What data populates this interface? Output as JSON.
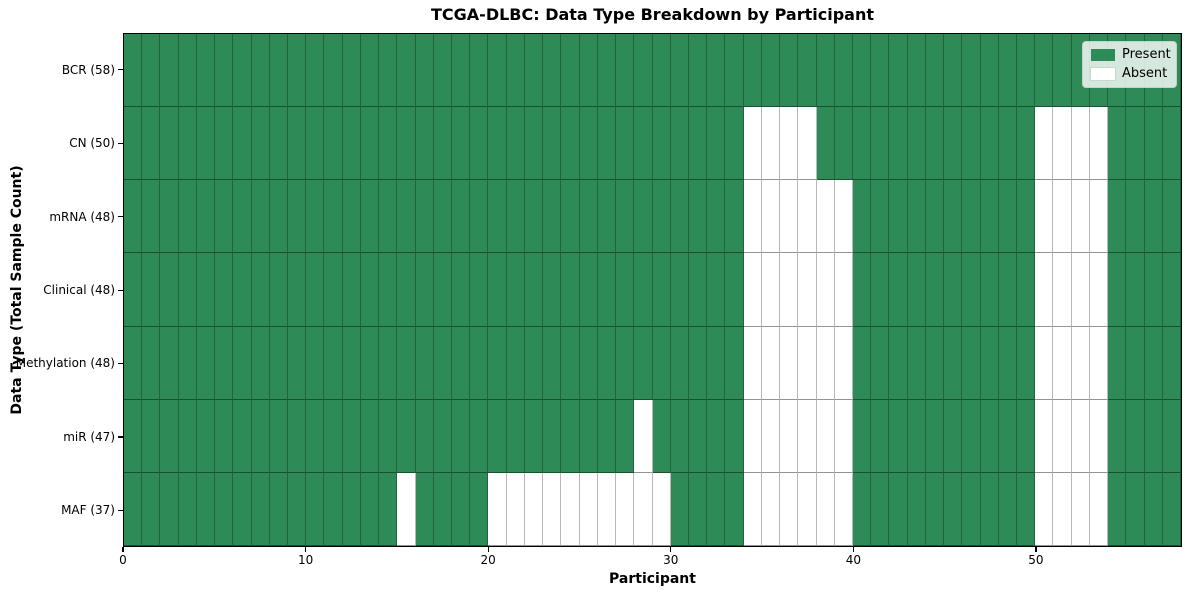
{
  "title": "TCGA-DLBC: Data Type Breakdown by Participant",
  "chart_data": {
    "type": "heatmap",
    "title": "TCGA-DLBC: Data Type Breakdown by Participant",
    "xlabel": "Participant",
    "ylabel": "Data Type (Total Sample Count)",
    "n_participants": 58,
    "x_range": [
      0,
      58
    ],
    "x_ticks": [
      0,
      10,
      20,
      30,
      40,
      50
    ],
    "grid": true,
    "legend_position": "upper right",
    "legend": [
      {
        "label": "Present",
        "color": "#2e8b57"
      },
      {
        "label": "Absent",
        "color": "#ffffff"
      }
    ],
    "colors": {
      "present": "#2e8b57",
      "absent": "#ffffff",
      "grid_line": "rgba(0,0,0,0.3)"
    },
    "rows": [
      {
        "data_type": "BCR",
        "label": "BCR (58)",
        "total_samples": 58,
        "absent_participants": []
      },
      {
        "data_type": "CN",
        "label": "CN (50)",
        "total_samples": 50,
        "absent_participants": [
          34,
          35,
          36,
          37,
          50,
          51,
          52,
          53
        ]
      },
      {
        "data_type": "mRNA",
        "label": "mRNA (48)",
        "total_samples": 48,
        "absent_participants": [
          34,
          35,
          36,
          37,
          38,
          39,
          50,
          51,
          52,
          53
        ]
      },
      {
        "data_type": "Clinical",
        "label": "Clinical (48)",
        "total_samples": 48,
        "absent_participants": [
          34,
          35,
          36,
          37,
          38,
          39,
          50,
          51,
          52,
          53
        ]
      },
      {
        "data_type": "Methylation",
        "label": "Methylation (48)",
        "total_samples": 48,
        "absent_participants": [
          34,
          35,
          36,
          37,
          38,
          39,
          50,
          51,
          52,
          53
        ]
      },
      {
        "data_type": "miR",
        "label": "miR (47)",
        "total_samples": 47,
        "absent_participants": [
          28,
          34,
          35,
          36,
          37,
          38,
          39,
          50,
          51,
          52,
          53
        ]
      },
      {
        "data_type": "MAF",
        "label": "MAF (37)",
        "total_samples": 37,
        "absent_participants": [
          15,
          20,
          21,
          22,
          23,
          24,
          25,
          26,
          27,
          28,
          29,
          34,
          35,
          36,
          37,
          38,
          39,
          50,
          51,
          52,
          53
        ]
      }
    ]
  }
}
